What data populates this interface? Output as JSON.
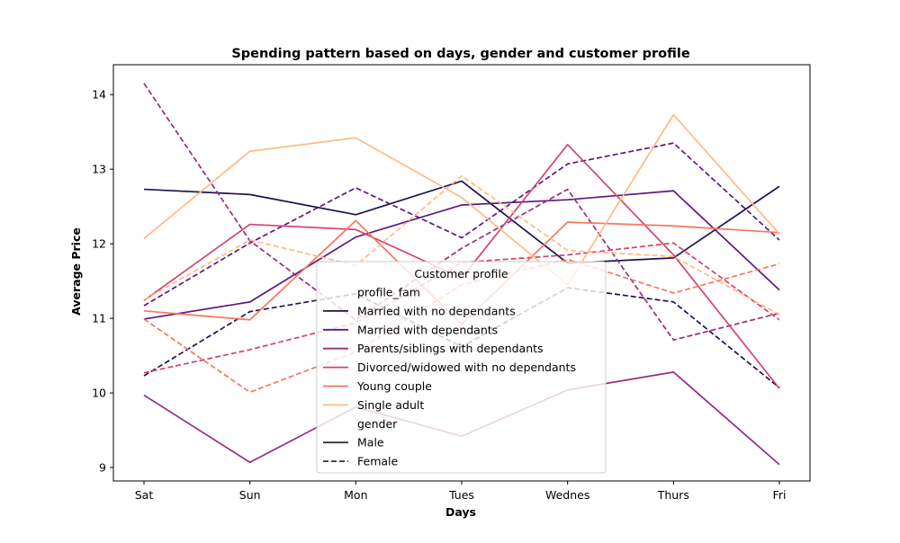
{
  "chart_data": {
    "type": "line",
    "title": "Spending pattern based on days, gender and customer profile",
    "xlabel": "Days",
    "ylabel": "Average Price",
    "categories": [
      "Sat",
      "Sun",
      "Mon",
      "Tues",
      "Wednes",
      "Thurs",
      "Fri"
    ],
    "ylim": [
      8.82,
      14.4
    ],
    "yticks": [
      9,
      10,
      11,
      12,
      13,
      14
    ],
    "grid": false,
    "legend": {
      "title": "Customer profile",
      "hue_header": "profile_fam",
      "style_header": "gender",
      "placement": "lower center",
      "hue_entries": [
        "Married with no dependants",
        "Married with dependants",
        "Parents/siblings with dependants",
        "Divorced/widowed with no dependants",
        "Young couple",
        "Single adult"
      ],
      "style_entries": [
        {
          "label": "Male",
          "dash": "solid"
        },
        {
          "label": "Female",
          "dash": "dashed"
        }
      ]
    },
    "series": [
      {
        "profile": "Married with no dependants",
        "gender": "Male",
        "color": "#221150",
        "dash": "solid",
        "values": [
          12.73,
          12.66,
          12.39,
          12.84,
          11.74,
          11.81,
          12.77
        ]
      },
      {
        "profile": "Married with no dependants",
        "gender": "Female",
        "color": "#221150",
        "dash": "dashed",
        "values": [
          10.23,
          11.09,
          11.33,
          10.62,
          11.41,
          11.22,
          10.07
        ]
      },
      {
        "profile": "Married with dependants",
        "gender": "Male",
        "color": "#5f187f",
        "dash": "solid",
        "values": [
          10.99,
          11.22,
          12.09,
          12.52,
          12.59,
          12.71,
          11.38
        ]
      },
      {
        "profile": "Married with dependants",
        "gender": "Female",
        "color": "#5f187f",
        "dash": "dashed",
        "values": [
          11.17,
          12.01,
          12.75,
          12.08,
          13.07,
          13.35,
          12.05
        ]
      },
      {
        "profile": "Parents/siblings with dependants",
        "gender": "Male",
        "color": "#982d80",
        "dash": "solid",
        "values": [
          9.97,
          9.07,
          9.81,
          9.42,
          10.04,
          10.28,
          9.04
        ]
      },
      {
        "profile": "Parents/siblings with dependants",
        "gender": "Female",
        "color": "#982d80",
        "dash": "dashed",
        "values": [
          14.15,
          12.04,
          10.98,
          11.94,
          12.73,
          10.71,
          11.07
        ]
      },
      {
        "profile": "Divorced/widowed with no dependants",
        "gender": "Male",
        "color": "#d3436e",
        "dash": "solid",
        "values": [
          11.24,
          12.26,
          12.19,
          11.54,
          13.33,
          11.85,
          10.06
        ]
      },
      {
        "profile": "Divorced/widowed with no dependants",
        "gender": "Female",
        "color": "#d3436e",
        "dash": "dashed",
        "values": [
          10.27,
          10.58,
          10.94,
          11.75,
          11.85,
          12.01,
          10.98
        ]
      },
      {
        "profile": "Young couple",
        "gender": "Male",
        "color": "#f8765c",
        "dash": "solid",
        "values": [
          11.1,
          10.98,
          12.31,
          10.92,
          12.29,
          12.24,
          12.15
        ]
      },
      {
        "profile": "Young couple",
        "gender": "Female",
        "color": "#f8765c",
        "dash": "dashed",
        "values": [
          10.99,
          10.01,
          10.55,
          11.45,
          11.79,
          11.34,
          11.73
        ]
      },
      {
        "profile": "Single adult",
        "gender": "Male",
        "color": "#febb81",
        "dash": "solid",
        "values": [
          12.07,
          13.24,
          13.42,
          12.62,
          11.45,
          13.73,
          12.13
        ]
      },
      {
        "profile": "Single adult",
        "gender": "Female",
        "color": "#febb81",
        "dash": "dashed",
        "values": [
          11.25,
          12.05,
          11.71,
          12.91,
          11.91,
          11.83,
          11.05
        ]
      }
    ]
  }
}
